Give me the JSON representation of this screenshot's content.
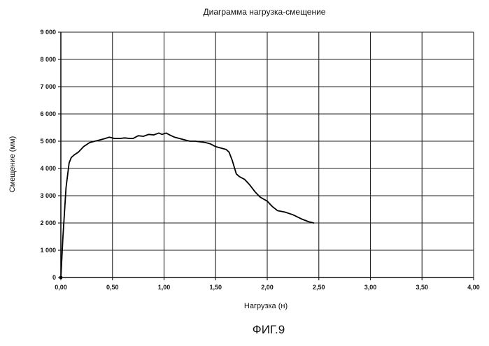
{
  "chart_data": {
    "type": "line",
    "title": "Диаграмма нагрузка-смещение",
    "xlabel": "Нагрузка (н)",
    "ylabel": "Смещение (мм)",
    "xlim": [
      0,
      4
    ],
    "ylim": [
      0,
      9000
    ],
    "grid": true,
    "x_ticks": [
      "0,00",
      "0,50",
      "1,00",
      "1,50",
      "2,00",
      "2,50",
      "3,00",
      "3,50",
      "4,00"
    ],
    "y_ticks": [
      "0",
      "1 000",
      "2 000",
      "3 000",
      "4 000",
      "5 000",
      "6 000",
      "7 000",
      "8 000",
      "9 000"
    ],
    "series": [
      {
        "x": [
          0.0,
          0.02,
          0.05,
          0.08,
          0.1,
          0.13,
          0.17,
          0.22,
          0.28,
          0.33,
          0.38,
          0.43,
          0.47,
          0.52,
          0.57,
          0.62,
          0.67,
          0.7,
          0.75,
          0.8,
          0.85,
          0.9,
          0.95,
          0.98,
          1.02,
          1.06,
          1.1,
          1.15,
          1.2,
          1.25,
          1.3,
          1.35,
          1.4,
          1.45,
          1.5,
          1.55,
          1.6,
          1.63,
          1.66,
          1.7,
          1.73,
          1.78,
          1.83,
          1.88,
          1.93,
          2.0,
          2.05,
          2.1,
          2.17,
          2.25,
          2.33,
          2.4,
          2.45
        ],
        "y": [
          0,
          1500,
          3300,
          4200,
          4400,
          4500,
          4600,
          4800,
          4950,
          5000,
          5050,
          5100,
          5150,
          5100,
          5100,
          5120,
          5100,
          5100,
          5200,
          5180,
          5250,
          5230,
          5300,
          5250,
          5300,
          5220,
          5150,
          5100,
          5050,
          5000,
          5000,
          4980,
          4950,
          4900,
          4800,
          4750,
          4700,
          4600,
          4300,
          3800,
          3700,
          3600,
          3400,
          3150,
          2950,
          2800,
          2600,
          2450,
          2400,
          2300,
          2150,
          2050,
          2000
        ]
      }
    ]
  },
  "figure_caption": "ФИГ.9"
}
